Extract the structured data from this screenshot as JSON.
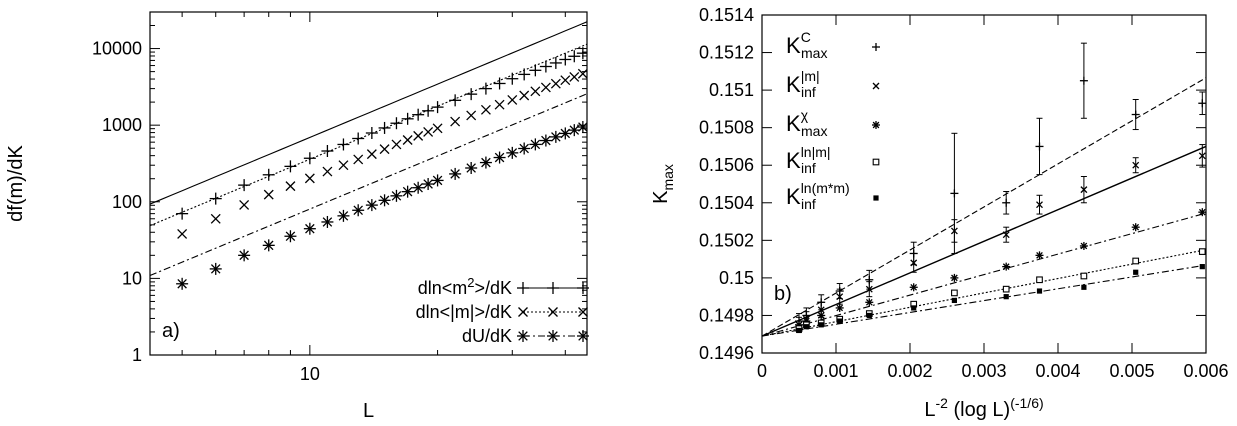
{
  "chart_data": [
    {
      "panel_label": "a)",
      "type": "line",
      "xlabel": "L",
      "ylabel": "df(m)/dK",
      "xscale": "log",
      "yscale": "log",
      "xlim": [
        4.2,
        45
      ],
      "ylim": [
        1,
        30000
      ],
      "xticks": [
        {
          "value": 10,
          "label": "10"
        }
      ],
      "yticks": [
        {
          "value": 1,
          "label": "1"
        },
        {
          "value": 10,
          "label": "10"
        },
        {
          "value": 100,
          "label": "100"
        },
        {
          "value": 1000,
          "label": "1000"
        },
        {
          "value": 10000,
          "label": "10000"
        }
      ],
      "grid": false,
      "legend_position": "bottom-right",
      "x": [
        5,
        6,
        7,
        8,
        9,
        10,
        11,
        12,
        13,
        14,
        15,
        16,
        17,
        18,
        19,
        20,
        22,
        24,
        26,
        28,
        30,
        32,
        34,
        36,
        38,
        40,
        42,
        44
      ],
      "series": [
        {
          "name": "dln<m^2>/dK",
          "legend_main": "dln<m",
          "legend_sup": "2",
          "legend_tail": ">/dK",
          "line_style": "solid",
          "marker": "plus",
          "fit": {
            "a": 3.38,
            "b": 2.311
          },
          "values": [
            70,
            110,
            165,
            225,
            290,
            370,
            460,
            560,
            670,
            790,
            920,
            1060,
            1210,
            1370,
            1540,
            1720,
            2110,
            2540,
            3000,
            3500,
            4040,
            4600,
            5200,
            5830,
            6490,
            7200,
            7930,
            8700
          ]
        },
        {
          "name": "dln<|m|>/dK",
          "legend_main": "dln<|m|>/dK",
          "legend_sup": "",
          "legend_tail": "",
          "line_style": "dotted",
          "marker": "x",
          "fit": {
            "a": 1.8,
            "b": 2.3
          },
          "values": [
            38,
            60,
            91,
            124,
            160,
            202,
            248,
            300,
            357,
            419,
            487,
            561,
            640,
            725,
            815,
            910,
            1115,
            1340,
            1585,
            1850,
            2135,
            2440,
            2765,
            3110,
            3475,
            3860,
            4265,
            4690
          ]
        },
        {
          "name": "dU/dK",
          "legend_main": "dU/dK",
          "legend_sup": "",
          "legend_tail": "",
          "line_style": "dashdot",
          "marker": "star",
          "fit": {
            "a": 0.4,
            "b": 2.303
          },
          "values": [
            8.5,
            13.3,
            20,
            27,
            35.5,
            44.5,
            54.5,
            65.5,
            77.5,
            90.5,
            104.5,
            119.5,
            135.5,
            152.5,
            170.5,
            190,
            231,
            276,
            325,
            378,
            435,
            496,
            561,
            630,
            703,
            780,
            861,
            946
          ]
        }
      ]
    },
    {
      "panel_label": "b)",
      "type": "scatter",
      "xlabel_main": "L",
      "xlabel_sup1": "-2",
      "xlabel_mid": " (log L)",
      "xlabel_sup2": "(-1/6)",
      "ylabel_main": "K",
      "ylabel_sub": "max",
      "xlim": [
        0,
        0.006
      ],
      "ylim": [
        0.1496,
        0.1514
      ],
      "xticks": [
        {
          "value": 0,
          "label": "0"
        },
        {
          "value": 0.001,
          "label": "0.001"
        },
        {
          "value": 0.002,
          "label": "0.002"
        },
        {
          "value": 0.003,
          "label": "0.003"
        },
        {
          "value": 0.004,
          "label": "0.004"
        },
        {
          "value": 0.005,
          "label": "0.005"
        },
        {
          "value": 0.006,
          "label": "0.006"
        }
      ],
      "yticks": [
        {
          "value": 0.1496,
          "label": "0.1496"
        },
        {
          "value": 0.1498,
          "label": "0.1498"
        },
        {
          "value": 0.15,
          "label": "0.15"
        },
        {
          "value": 0.1502,
          "label": "0.1502"
        },
        {
          "value": 0.1504,
          "label": "0.1504"
        },
        {
          "value": 0.1506,
          "label": "0.1506"
        },
        {
          "value": 0.1508,
          "label": "0.1508"
        },
        {
          "value": 0.151,
          "label": "0.151"
        },
        {
          "value": 0.1512,
          "label": "0.1512"
        },
        {
          "value": 0.1514,
          "label": "0.1514"
        }
      ],
      "grid": false,
      "legend_position": "top-left",
      "x": [
        0.0005,
        0.0006,
        0.0008,
        0.00105,
        0.00145,
        0.00205,
        0.0026,
        0.0033,
        0.00375,
        0.00435,
        0.00505,
        0.00595
      ],
      "series": [
        {
          "name": "K_max^C",
          "legend_main": "K",
          "legend_sup": "C",
          "legend_sub": "max",
          "marker": "plus",
          "line_style": "dashed",
          "fit": {
            "intercept": 0.14969,
            "slope": 0.2293
          },
          "values": [
            0.14977,
            0.1498,
            0.14987,
            0.14993,
            0.14999,
            0.15013,
            0.15045,
            0.1504,
            0.1507,
            0.15105,
            0.15087,
            0.15093
          ],
          "errors": [
            4e-05,
            4e-05,
            4e-05,
            4e-05,
            5e-05,
            6e-05,
            0.00032,
            6e-05,
            0.00015,
            0.0002,
            8e-05,
            6e-05
          ]
        },
        {
          "name": "K_inf^|m|",
          "legend_main": "K",
          "legend_sup": "|m|",
          "legend_sub": "inf",
          "marker": "x",
          "line_style": "solid",
          "fit": {
            "intercept": 0.14969,
            "slope": 0.16833
          },
          "values": [
            0.14975,
            0.14978,
            0.14983,
            0.1499,
            0.14994,
            0.15008,
            0.15025,
            0.15023,
            0.15039,
            0.15047,
            0.1506,
            0.15065
          ],
          "errors": [
            4e-05,
            4e-05,
            4e-05,
            4e-05,
            4e-05,
            5e-05,
            6e-05,
            4e-05,
            5e-05,
            7e-05,
            4e-05,
            6e-05
          ]
        },
        {
          "name": "K_max^chi",
          "legend_main": "K",
          "legend_sup": "χ",
          "legend_sub": "max",
          "marker": "star",
          "line_style": "dashdot",
          "fit": {
            "intercept": 0.14969,
            "slope": 0.10917
          },
          "values": [
            0.14975,
            0.14977,
            0.1498,
            0.14984,
            0.14987,
            0.14995,
            0.15,
            0.15006,
            0.15012,
            0.15017,
            0.15027,
            0.15035
          ]
        },
        {
          "name": "K_inf^ln|m|",
          "legend_main": "K",
          "legend_sup": "ln|m|",
          "legend_sub": "inf",
          "marker": "square-open",
          "line_style": "dotted",
          "fit": {
            "intercept": 0.14969,
            "slope": 0.07667
          },
          "values": [
            0.14973,
            0.14975,
            0.14976,
            0.14978,
            0.14981,
            0.14986,
            0.14992,
            0.14994,
            0.14999,
            0.15001,
            0.15009,
            0.15014
          ]
        },
        {
          "name": "K_inf^ln(m*m)",
          "legend_main": "K",
          "legend_sup": "ln(m*m)",
          "legend_sub": "inf",
          "marker": "square-filled",
          "line_style": "dashdot",
          "fit": {
            "intercept": 0.14969,
            "slope": 0.063
          },
          "values": [
            0.14972,
            0.14974,
            0.14975,
            0.14977,
            0.1498,
            0.14984,
            0.14988,
            0.1499,
            0.14993,
            0.14995,
            0.15003,
            0.15006
          ]
        }
      ]
    }
  ]
}
